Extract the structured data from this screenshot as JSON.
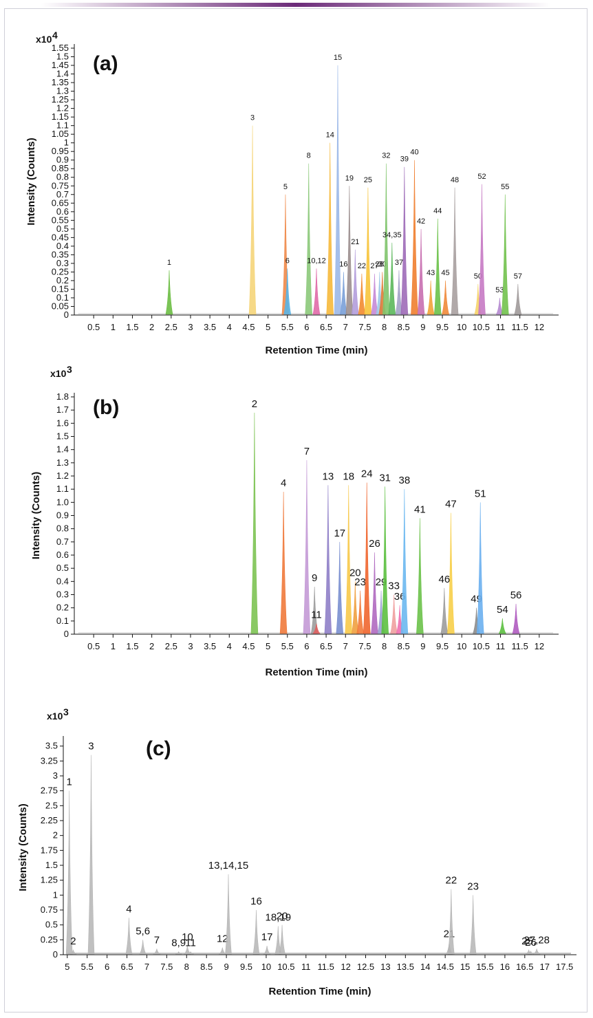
{
  "colors": {
    "frame": "#cfcfd8",
    "accent": "#6b2a78",
    "gray_trace": "#b5b5b5"
  },
  "chart_data": [
    {
      "type": "line",
      "panel_label": "(a)",
      "multiplier": "x10",
      "exponent": "4",
      "xlabel": "Retention Time (min)",
      "ylabel": "Intensity (Counts)",
      "xlim": [
        0,
        12.5
      ],
      "ylim": [
        0,
        1.55
      ],
      "xticks": [
        "0.5",
        "1",
        "1.5",
        "2",
        "2.5",
        "3",
        "3.5",
        "4",
        "4.5",
        "5",
        "5.5",
        "6",
        "6.5",
        "7",
        "7.5",
        "8",
        "8.5",
        "9",
        "9.5",
        "10",
        "10.5",
        "11",
        "11.5",
        "12"
      ],
      "yticks": [
        "0",
        "0.05",
        "0.1",
        "0.15",
        "0.2",
        "0.25",
        "0.3",
        "0.35",
        "0.4",
        "0.45",
        "0.5",
        "0.55",
        "0.6",
        "0.65",
        "0.7",
        "0.75",
        "0.8",
        "0.85",
        "0.9",
        "0.95",
        "1",
        "1.05",
        "1.1",
        "1.15",
        "1.2",
        "1.25",
        "1.3",
        "1.35",
        "1.4",
        "1.45",
        "1.5",
        "1.55"
      ],
      "peaks": [
        {
          "label": "1",
          "x": 2.45,
          "y": 0.26,
          "color": "#6dbe45"
        },
        {
          "label": "3",
          "x": 4.6,
          "y": 1.1,
          "color": "#f5d57a"
        },
        {
          "label": "5",
          "x": 5.45,
          "y": 0.7,
          "color": "#ef8a4a"
        },
        {
          "label": "6",
          "x": 5.5,
          "y": 0.27,
          "color": "#5ab4e5"
        },
        {
          "label": "8",
          "x": 6.05,
          "y": 0.88,
          "color": "#8cc97a"
        },
        {
          "label": "10,12",
          "x": 6.25,
          "y": 0.27,
          "color": "#e06aa8"
        },
        {
          "label": "14",
          "x": 6.6,
          "y": 1.0,
          "color": "#f6b93b"
        },
        {
          "label": "15",
          "x": 6.8,
          "y": 1.45,
          "color": "#9bb8e8"
        },
        {
          "label": "16",
          "x": 6.95,
          "y": 0.25,
          "color": "#7aa0d8"
        },
        {
          "label": "19",
          "x": 7.1,
          "y": 0.75,
          "color": "#9c8f8f"
        },
        {
          "label": "21",
          "x": 7.25,
          "y": 0.38,
          "color": "#b39ddb"
        },
        {
          "label": "22",
          "x": 7.42,
          "y": 0.24,
          "color": "#f28b30"
        },
        {
          "label": "25",
          "x": 7.58,
          "y": 0.74,
          "color": "#f7c43b"
        },
        {
          "label": "27",
          "x": 7.75,
          "y": 0.24,
          "color": "#c58ad6"
        },
        {
          "label": "28",
          "x": 7.88,
          "y": 0.25,
          "color": "#9ec9e8"
        },
        {
          "label": "30",
          "x": 7.95,
          "y": 0.25,
          "color": "#e07b39"
        },
        {
          "label": "32",
          "x": 8.05,
          "y": 0.88,
          "color": "#7fc46b"
        },
        {
          "label": "34,35",
          "x": 8.2,
          "y": 0.42,
          "color": "#5cb85c"
        },
        {
          "label": "37",
          "x": 8.38,
          "y": 0.26,
          "color": "#a3a3c8"
        },
        {
          "label": "39",
          "x": 8.52,
          "y": 0.86,
          "color": "#9e6cb8"
        },
        {
          "label": "40",
          "x": 8.78,
          "y": 0.9,
          "color": "#f07f30"
        },
        {
          "label": "42",
          "x": 8.95,
          "y": 0.5,
          "color": "#c86fb0"
        },
        {
          "label": "43",
          "x": 9.2,
          "y": 0.2,
          "color": "#f2a33a"
        },
        {
          "label": "44",
          "x": 9.38,
          "y": 0.56,
          "color": "#6cc24a"
        },
        {
          "label": "45",
          "x": 9.58,
          "y": 0.2,
          "color": "#f08a3a"
        },
        {
          "label": "48",
          "x": 9.82,
          "y": 0.74,
          "color": "#a8a0a0"
        },
        {
          "label": "50",
          "x": 10.42,
          "y": 0.18,
          "color": "#f5d36a"
        },
        {
          "label": "52",
          "x": 10.52,
          "y": 0.76,
          "color": "#c77ac4"
        },
        {
          "label": "53",
          "x": 10.98,
          "y": 0.1,
          "color": "#b58ad0"
        },
        {
          "label": "55",
          "x": 11.12,
          "y": 0.7,
          "color": "#72c24e"
        },
        {
          "label": "57",
          "x": 11.45,
          "y": 0.18,
          "color": "#a09a9a"
        }
      ]
    },
    {
      "type": "line",
      "panel_label": "(b)",
      "multiplier": "x10",
      "exponent": "3",
      "xlabel": "Retention Time (min)",
      "ylabel": "Intensity (Counts)",
      "xlim": [
        0,
        12.5
      ],
      "ylim": [
        0,
        1.8
      ],
      "xticks": [
        "0.5",
        "1",
        "1.5",
        "2",
        "2.5",
        "3",
        "3.5",
        "4",
        "4.5",
        "5",
        "5.5",
        "6",
        "6.5",
        "7",
        "7.5",
        "8",
        "8.5",
        "9",
        "9.5",
        "10",
        "10.5",
        "11",
        "11.5",
        "12"
      ],
      "yticks": [
        "0",
        "0.1",
        "0.2",
        "0.3",
        "0.4",
        "0.5",
        "0.6",
        "0.7",
        "0.8",
        "0.9",
        "1.0",
        "1.1",
        "1.2",
        "1.3",
        "1.4",
        "1.5",
        "1.6",
        "1.7",
        "1.8"
      ],
      "peaks": [
        {
          "label": "2",
          "x": 4.65,
          "y": 1.68,
          "color": "#7dc353"
        },
        {
          "label": "4",
          "x": 5.4,
          "y": 1.08,
          "color": "#f07a3c"
        },
        {
          "label": "7",
          "x": 6.0,
          "y": 1.32,
          "color": "#c49ad6"
        },
        {
          "label": "9",
          "x": 6.2,
          "y": 0.36,
          "color": "#9c9c9c"
        },
        {
          "label": "11",
          "x": 6.25,
          "y": 0.08,
          "color": "#e06060"
        },
        {
          "label": "13",
          "x": 6.55,
          "y": 1.13,
          "color": "#8f7fc8"
        },
        {
          "label": "17",
          "x": 6.85,
          "y": 0.7,
          "color": "#7a8fd0"
        },
        {
          "label": "18",
          "x": 7.08,
          "y": 1.13,
          "color": "#f7c94a"
        },
        {
          "label": "20",
          "x": 7.25,
          "y": 0.4,
          "color": "#f0a040"
        },
        {
          "label": "23",
          "x": 7.38,
          "y": 0.33,
          "color": "#f27a3a"
        },
        {
          "label": "24",
          "x": 7.55,
          "y": 1.15,
          "color": "#f0662f"
        },
        {
          "label": "26",
          "x": 7.75,
          "y": 0.62,
          "color": "#b06ac0"
        },
        {
          "label": "29",
          "x": 7.92,
          "y": 0.33,
          "color": "#9aa0d0"
        },
        {
          "label": "31",
          "x": 8.02,
          "y": 1.12,
          "color": "#5cc040"
        },
        {
          "label": "33",
          "x": 8.25,
          "y": 0.3,
          "color": "#f0a0a0"
        },
        {
          "label": "36",
          "x": 8.4,
          "y": 0.22,
          "color": "#f070b0"
        },
        {
          "label": "38",
          "x": 8.52,
          "y": 1.1,
          "color": "#6cb8f0"
        },
        {
          "label": "41",
          "x": 8.92,
          "y": 0.88,
          "color": "#6cc24a"
        },
        {
          "label": "46",
          "x": 9.55,
          "y": 0.35,
          "color": "#9c9c9c"
        },
        {
          "label": "47",
          "x": 9.72,
          "y": 0.92,
          "color": "#f7cf4a"
        },
        {
          "label": "49",
          "x": 10.38,
          "y": 0.2,
          "color": "#8c8c8c"
        },
        {
          "label": "51",
          "x": 10.48,
          "y": 1.0,
          "color": "#6cb0ef"
        },
        {
          "label": "54",
          "x": 11.05,
          "y": 0.12,
          "color": "#5cc040"
        },
        {
          "label": "56",
          "x": 11.4,
          "y": 0.23,
          "color": "#b05cc0"
        }
      ]
    },
    {
      "type": "line",
      "panel_label": "(c)",
      "multiplier": "x10",
      "exponent": "3",
      "xlabel": "Retention Time (min)",
      "ylabel": "Intensity (Counts)",
      "xlim": [
        4.9,
        17.8
      ],
      "ylim": [
        0,
        3.6
      ],
      "xticks": [
        "5",
        "5.5",
        "6",
        "6.5",
        "7",
        "7.5",
        "8",
        "8.5",
        "9",
        "9.5",
        "10",
        "10.5",
        "11",
        "11.5",
        "12",
        "12.5",
        "13",
        "13.5",
        "14",
        "14.5",
        "15",
        "15.5",
        "16",
        "16.5",
        "17",
        "17.5"
      ],
      "yticks": [
        "0",
        "0.25",
        "0.5",
        "0.75",
        "1",
        "1.25",
        "1.5",
        "1.75",
        "2",
        "2.25",
        "2.5",
        "2.75",
        "3",
        "3.25",
        "3.5"
      ],
      "peaks": [
        {
          "label": "1",
          "x": 5.05,
          "y": 2.75
        },
        {
          "label": "2",
          "x": 5.15,
          "y": 0.08
        },
        {
          "label": "3",
          "x": 5.6,
          "y": 3.35
        },
        {
          "label": "4",
          "x": 6.55,
          "y": 0.62
        },
        {
          "label": "5,6",
          "x": 6.9,
          "y": 0.25
        },
        {
          "label": "7",
          "x": 7.25,
          "y": 0.1
        },
        {
          "label": "8,9",
          "x": 7.8,
          "y": 0.05
        },
        {
          "label": "10",
          "x": 8.02,
          "y": 0.15
        },
        {
          "label": "11",
          "x": 8.1,
          "y": 0.05
        },
        {
          "label": "12",
          "x": 8.9,
          "y": 0.12
        },
        {
          "label": "13,14,15",
          "x": 9.05,
          "y": 1.35
        },
        {
          "label": "16",
          "x": 9.75,
          "y": 0.75
        },
        {
          "label": "17",
          "x": 10.02,
          "y": 0.15
        },
        {
          "label": "18,19",
          "x": 10.3,
          "y": 0.48
        },
        {
          "label": "20",
          "x": 10.4,
          "y": 0.5
        },
        {
          "label": "21",
          "x": 14.6,
          "y": 0.2
        },
        {
          "label": "22",
          "x": 14.65,
          "y": 1.1
        },
        {
          "label": "23",
          "x": 15.2,
          "y": 1.0
        },
        {
          "label": "25,",
          "x": 16.6,
          "y": 0.08
        },
        {
          "label": "26",
          "x": 16.65,
          "y": 0.06
        },
        {
          "label": "27,28",
          "x": 16.8,
          "y": 0.1
        }
      ]
    }
  ]
}
